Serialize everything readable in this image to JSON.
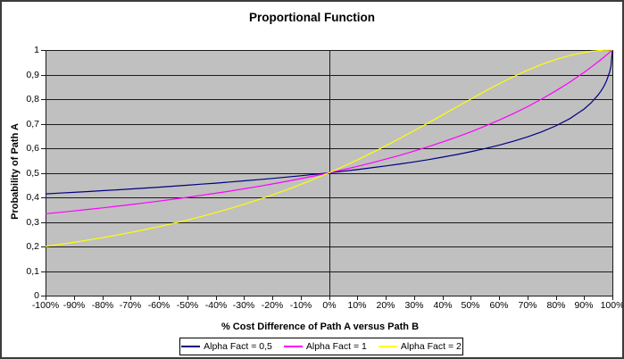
{
  "chart_data": {
    "type": "line",
    "title": "Proportional Function",
    "xlabel": "% Cost Difference of Path A versus Path B",
    "ylabel": "Probability of Path A",
    "xlim": [
      -100,
      100
    ],
    "ylim": [
      0,
      1
    ],
    "grid": "horizontal-major",
    "legend_position": "bottom",
    "plot_bg": "#c0c0c0",
    "grid_color": "#1a1a1a",
    "axis_color": "#1a1a1a",
    "y_ticks": [
      {
        "label": "1",
        "value": 1.0
      },
      {
        "label": "0,9",
        "value": 0.9
      },
      {
        "label": "0,8",
        "value": 0.8
      },
      {
        "label": "0,7",
        "value": 0.7
      },
      {
        "label": "0,6",
        "value": 0.6
      },
      {
        "label": "0,5",
        "value": 0.5
      },
      {
        "label": "0,4",
        "value": 0.4
      },
      {
        "label": "0,3",
        "value": 0.3
      },
      {
        "label": "0,2",
        "value": 0.2
      },
      {
        "label": "0,1",
        "value": 0.1
      },
      {
        "label": "0",
        "value": 0.0
      }
    ],
    "x_ticks": [
      {
        "label": "-100%",
        "value": -100
      },
      {
        "label": "-90%",
        "value": -90
      },
      {
        "label": "-80%",
        "value": -80
      },
      {
        "label": "-70%",
        "value": -70
      },
      {
        "label": "-60%",
        "value": -60
      },
      {
        "label": "-50%",
        "value": -50
      },
      {
        "label": "-40%",
        "value": -40
      },
      {
        "label": "-30%",
        "value": -30
      },
      {
        "label": "-20%",
        "value": -20
      },
      {
        "label": "-10%",
        "value": -10
      },
      {
        "label": "0%",
        "value": 0
      },
      {
        "label": "10%",
        "value": 10
      },
      {
        "label": "20%",
        "value": 20
      },
      {
        "label": "30%",
        "value": 30
      },
      {
        "label": "40%",
        "value": 40
      },
      {
        "label": "50%",
        "value": 50
      },
      {
        "label": "60%",
        "value": 60
      },
      {
        "label": "70%",
        "value": 70
      },
      {
        "label": "80%",
        "value": 80
      },
      {
        "label": "90%",
        "value": 90
      },
      {
        "label": "100%",
        "value": 100
      }
    ],
    "x": [
      -100,
      -95,
      -90,
      -85,
      -80,
      -75,
      -70,
      -65,
      -60,
      -55,
      -50,
      -45,
      -40,
      -35,
      -30,
      -25,
      -20,
      -15,
      -10,
      -5,
      0,
      5,
      10,
      15,
      20,
      25,
      30,
      35,
      40,
      45,
      50,
      55,
      60,
      65,
      70,
      75,
      80,
      85,
      90,
      92.5,
      95,
      96,
      97,
      98,
      99,
      99.5,
      100
    ],
    "series": [
      {
        "name": "Alpha Fact = 0,5",
        "color": "#000080",
        "values": [
          0.4142,
          0.4173,
          0.4204,
          0.4237,
          0.4271,
          0.4305,
          0.4341,
          0.4377,
          0.4415,
          0.4454,
          0.4495,
          0.4537,
          0.458,
          0.4626,
          0.4673,
          0.4721,
          0.4772,
          0.4825,
          0.4881,
          0.4939,
          0.5,
          0.5064,
          0.5132,
          0.5203,
          0.5279,
          0.5359,
          0.5445,
          0.5536,
          0.5635,
          0.5742,
          0.5858,
          0.5985,
          0.6125,
          0.6283,
          0.646,
          0.6667,
          0.691,
          0.7208,
          0.7598,
          0.785,
          0.8173,
          0.8333,
          0.8524,
          0.8761,
          0.9091,
          0.934,
          1
        ]
      },
      {
        "name": "Alpha Fact = 1",
        "color": "#ff00ff",
        "values": [
          0.3333,
          0.339,
          0.3448,
          0.3509,
          0.3571,
          0.3636,
          0.3704,
          0.3774,
          0.3846,
          0.3922,
          0.4,
          0.4082,
          0.4167,
          0.4255,
          0.4348,
          0.4444,
          0.4545,
          0.4651,
          0.4762,
          0.4878,
          0.5,
          0.5128,
          0.5263,
          0.5405,
          0.5556,
          0.5714,
          0.5882,
          0.6061,
          0.625,
          0.6452,
          0.6667,
          0.6897,
          0.7143,
          0.7407,
          0.7692,
          0.8,
          0.8333,
          0.8696,
          0.9091,
          0.9302,
          0.9524,
          0.9615,
          0.9709,
          0.9804,
          0.9901,
          0.995,
          1
        ]
      },
      {
        "name": "Alpha Fact = 2",
        "color": "#ffff00",
        "values": [
          0.2,
          0.2082,
          0.2169,
          0.2261,
          0.2358,
          0.2462,
          0.2571,
          0.2686,
          0.2809,
          0.2939,
          0.3077,
          0.3223,
          0.3378,
          0.3543,
          0.3717,
          0.3902,
          0.4098,
          0.4306,
          0.4525,
          0.4756,
          0.5,
          0.5256,
          0.5525,
          0.5806,
          0.6098,
          0.64,
          0.6711,
          0.703,
          0.7353,
          0.7678,
          0.8,
          0.8316,
          0.8621,
          0.8909,
          0.9174,
          0.9412,
          0.9615,
          0.978,
          0.9901,
          0.9944,
          0.9975,
          0.9984,
          0.9991,
          0.9996,
          0.9999,
          1,
          1
        ]
      }
    ]
  }
}
